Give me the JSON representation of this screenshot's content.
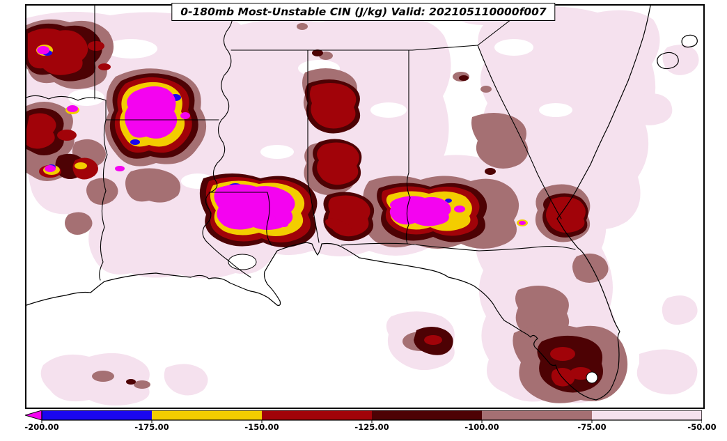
{
  "figure": {
    "title": "0-180mb Most-Unstable CIN (J/kg) Valid: 202105110000f007"
  },
  "palette": {
    "magenta": "#F403F0",
    "blue": "#1A06F0",
    "yellow": "#F3CD00",
    "red": "#A10309",
    "darkmaroon": "#4D0204",
    "mauve": "#A57073",
    "palepink": "#F5E1EE",
    "outline": "#000000",
    "background": "#FFFFFF"
  },
  "colorbar": {
    "ticks": [
      "-200.00",
      "-175.00",
      "-150.00",
      "-125.00",
      "-100.00",
      "-75.00",
      "-50.00"
    ],
    "band_color_keys": [
      "blue",
      "yellow",
      "red",
      "darkmaroon",
      "mauve",
      "palepink"
    ],
    "extend_min_color_key": "magenta",
    "orientation": "horizontal-bottom"
  },
  "chart_data": {
    "type": "filled-contour-map",
    "title": "0-180mb Most-Unstable CIN (J/kg) Valid: 202105110000f007",
    "variable": "0-180mb Most-Unstable CIN",
    "units": "J/kg",
    "valid_label": "202105110000f007",
    "contour_levels": [
      -200,
      -175,
      -150,
      -125,
      -100,
      -75,
      -50
    ],
    "bands": [
      {
        "range": "< -200",
        "color": "#F403F0"
      },
      {
        "range": "-200 to -175",
        "color": "#1A06F0"
      },
      {
        "range": "-175 to -150",
        "color": "#F3CD00"
      },
      {
        "range": "-150 to -125",
        "color": "#A10309"
      },
      {
        "range": "-125 to -100",
        "color": "#4D0204"
      },
      {
        "range": "-100 to -75",
        "color": "#A57073"
      },
      {
        "range": "-75 to -50",
        "color": "#F5E1EE"
      }
    ],
    "region": "Southeastern United States (Texas to Carolinas, Gulf Coast, Florida)",
    "strongest_cin_areas": [
      "central Arkansas",
      "south-central Louisiana",
      "Alabama-Georgia border",
      "far west / top-left corner of domain"
    ],
    "legend_position": "bottom",
    "grid": false
  }
}
